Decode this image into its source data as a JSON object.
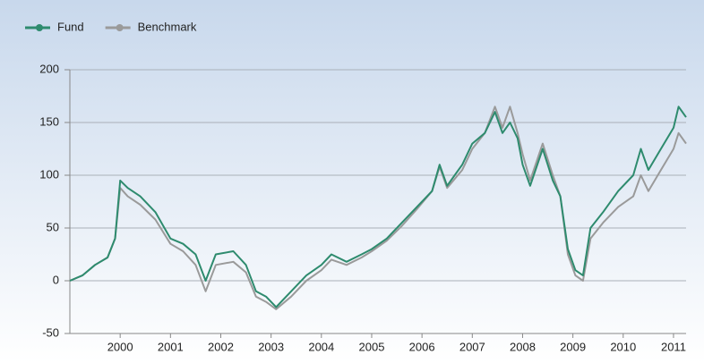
{
  "chart_data": {
    "type": "line",
    "x": [
      1999.0,
      1999.25,
      1999.5,
      1999.75,
      1999.9,
      2000.0,
      2000.15,
      2000.4,
      2000.7,
      2001.0,
      2001.25,
      2001.5,
      2001.7,
      2001.9,
      2002.25,
      2002.5,
      2002.7,
      2002.9,
      2003.1,
      2003.4,
      2003.7,
      2004.0,
      2004.2,
      2004.5,
      2004.8,
      2005.0,
      2005.3,
      2005.6,
      2005.9,
      2006.2,
      2006.35,
      2006.5,
      2006.8,
      2007.0,
      2007.25,
      2007.45,
      2007.6,
      2007.75,
      2007.9,
      2008.0,
      2008.15,
      2008.4,
      2008.6,
      2008.75,
      2008.9,
      2009.05,
      2009.2,
      2009.35,
      2009.6,
      2009.9,
      2010.2,
      2010.35,
      2010.5,
      2010.75,
      2011.0,
      2011.1,
      2011.25
    ],
    "series": [
      {
        "name": "Fund",
        "color": "#2e8b6e",
        "values": [
          0,
          5,
          15,
          22,
          40,
          95,
          88,
          80,
          65,
          40,
          35,
          25,
          0,
          25,
          28,
          15,
          -10,
          -15,
          -25,
          -10,
          5,
          15,
          25,
          18,
          25,
          30,
          40,
          55,
          70,
          85,
          110,
          90,
          110,
          130,
          140,
          160,
          140,
          150,
          135,
          110,
          90,
          125,
          95,
          80,
          30,
          10,
          5,
          50,
          65,
          85,
          100,
          125,
          105,
          125,
          145,
          165,
          155
        ]
      },
      {
        "name": "Benchmark",
        "color": "#9a9a9a",
        "values": [
          0,
          5,
          15,
          22,
          40,
          88,
          80,
          72,
          58,
          35,
          28,
          15,
          -10,
          15,
          18,
          8,
          -15,
          -20,
          -27,
          -15,
          0,
          10,
          20,
          15,
          22,
          28,
          38,
          52,
          68,
          85,
          108,
          88,
          105,
          125,
          140,
          165,
          145,
          165,
          140,
          120,
          95,
          130,
          100,
          80,
          25,
          5,
          0,
          40,
          55,
          70,
          80,
          100,
          85,
          105,
          125,
          140,
          130
        ]
      }
    ],
    "xlim": [
      1999.0,
      2011.25
    ],
    "xticks": [
      2000,
      2001,
      2002,
      2003,
      2004,
      2005,
      2006,
      2007,
      2008,
      2009,
      2010,
      2011
    ],
    "ylim": [
      -50,
      200
    ],
    "yticks": [
      -50,
      0,
      50,
      100,
      150,
      200
    ],
    "grid": true
  }
}
